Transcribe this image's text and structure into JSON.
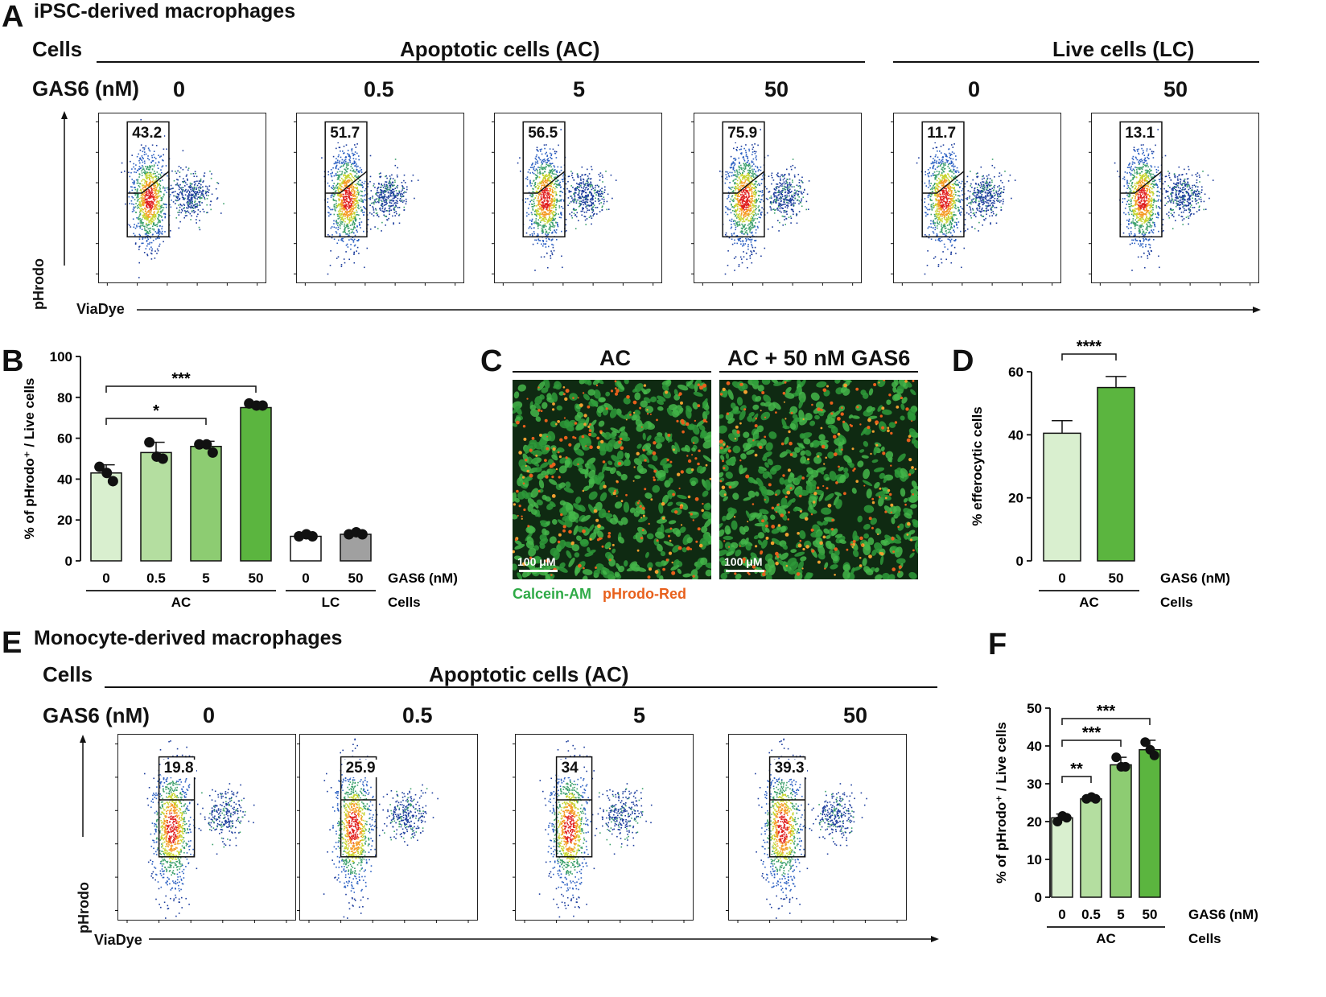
{
  "panel_letters": {
    "A": "A",
    "B": "B",
    "C": "C",
    "D": "D",
    "E": "E",
    "F": "F"
  },
  "panelA": {
    "title": "iPSC-derived macrophages",
    "cells_label": "Cells",
    "gas6_label": "GAS6 (nM)",
    "ac_header": "Apoptotic cells (AC)",
    "lc_header": "Live cells (LC)",
    "y_axis": "pHrodo",
    "x_axis": "ViaDye",
    "plots": [
      {
        "gas6": "0",
        "gate_pct": "43.2"
      },
      {
        "gas6": "0.5",
        "gate_pct": "51.7"
      },
      {
        "gas6": "5",
        "gate_pct": "56.5"
      },
      {
        "gas6": "50",
        "gate_pct": "75.9"
      },
      {
        "gas6": "0",
        "gate_pct": "11.7"
      },
      {
        "gas6": "50",
        "gate_pct": "13.1"
      }
    ]
  },
  "panelC": {
    "titles": [
      "AC",
      "AC + 50 nM GAS6"
    ],
    "scale_bar": "100 μM",
    "legend_green": "Calcein-AM",
    "legend_red": "pHrodo-Red",
    "green_color": "#22b14c",
    "red_color": "#e8601c"
  },
  "panelE": {
    "title": "Monocyte-derived macrophages",
    "cells_label": "Cells",
    "gas6_label": "GAS6 (nM)",
    "ac_header": "Apoptotic cells (AC)",
    "y_axis": "pHrodo",
    "x_axis": "ViaDye",
    "plots": [
      {
        "gas6": "0",
        "gate_pct": "19.8"
      },
      {
        "gas6": "0.5",
        "gate_pct": "25.9"
      },
      {
        "gas6": "5",
        "gate_pct": "34"
      },
      {
        "gas6": "50",
        "gate_pct": "39.3"
      }
    ]
  },
  "chart_data": [
    {
      "panel": "B",
      "type": "bar",
      "ylabel": "% of pHrodo⁺ / Live cells",
      "ylim": [
        0,
        100
      ],
      "yticks": [
        0,
        20,
        40,
        60,
        80,
        100
      ],
      "categories": [
        "0",
        "0.5",
        "5",
        "50",
        "0",
        "50"
      ],
      "groups": [
        {
          "label": "AC",
          "span": [
            0,
            3
          ]
        },
        {
          "label": "LC",
          "span": [
            4,
            5
          ]
        }
      ],
      "x_row_label": "GAS6 (nM)",
      "group_row_label": "Cells",
      "values": [
        43,
        53,
        56,
        75,
        12,
        13
      ],
      "errors": [
        4,
        5,
        2.5,
        2,
        0.8,
        0.8
      ],
      "points": [
        [
          46,
          43,
          39
        ],
        [
          58,
          51,
          50
        ],
        [
          57,
          57,
          53
        ],
        [
          77,
          76,
          76
        ],
        [
          12,
          13,
          12
        ],
        [
          13,
          14,
          13
        ]
      ],
      "colors": [
        "#d9efcf",
        "#b4dea0",
        "#8dcc72",
        "#5bb53f",
        "#ffffff",
        "#a0a0a0"
      ],
      "significance": [
        {
          "from": 0,
          "to": 3,
          "label": "***"
        },
        {
          "from": 0,
          "to": 2,
          "label": "*"
        }
      ]
    },
    {
      "panel": "D",
      "type": "bar",
      "ylabel": "% efferocytic cells",
      "ylim": [
        0,
        60
      ],
      "yticks": [
        0,
        20,
        40,
        60
      ],
      "categories": [
        "0",
        "50"
      ],
      "groups": [
        {
          "label": "AC",
          "span": [
            0,
            1
          ]
        }
      ],
      "x_row_label": "GAS6 (nM)",
      "group_row_label": "Cells",
      "values": [
        40.5,
        55
      ],
      "errors": [
        4,
        3.5
      ],
      "colors": [
        "#d9efcf",
        "#5bb53f"
      ],
      "significance": [
        {
          "from": 0,
          "to": 1,
          "label": "****"
        }
      ]
    },
    {
      "panel": "F",
      "type": "bar",
      "ylabel": "% of pHrodo⁺ / Live cells",
      "ylim": [
        0,
        50
      ],
      "yticks": [
        0,
        10,
        20,
        30,
        40,
        50
      ],
      "categories": [
        "0",
        "0.5",
        "5",
        "50"
      ],
      "groups": [
        {
          "label": "AC",
          "span": [
            0,
            3
          ]
        }
      ],
      "x_row_label": "GAS6 (nM)",
      "group_row_label": "Cells",
      "values": [
        21,
        26,
        35,
        39
      ],
      "errors": [
        1,
        0.6,
        2,
        2.5
      ],
      "points": [
        [
          20,
          21.5,
          21
        ],
        [
          26,
          26.5,
          26
        ],
        [
          37,
          34.5,
          34.5
        ],
        [
          41,
          39,
          37.5
        ]
      ],
      "colors": [
        "#d9efcf",
        "#b4dea0",
        "#8dcc72",
        "#5bb53f"
      ],
      "significance": [
        {
          "from": 0,
          "to": 3,
          "label": "***"
        },
        {
          "from": 0,
          "to": 2,
          "label": "***"
        },
        {
          "from": 0,
          "to": 1,
          "label": "**"
        }
      ]
    }
  ]
}
